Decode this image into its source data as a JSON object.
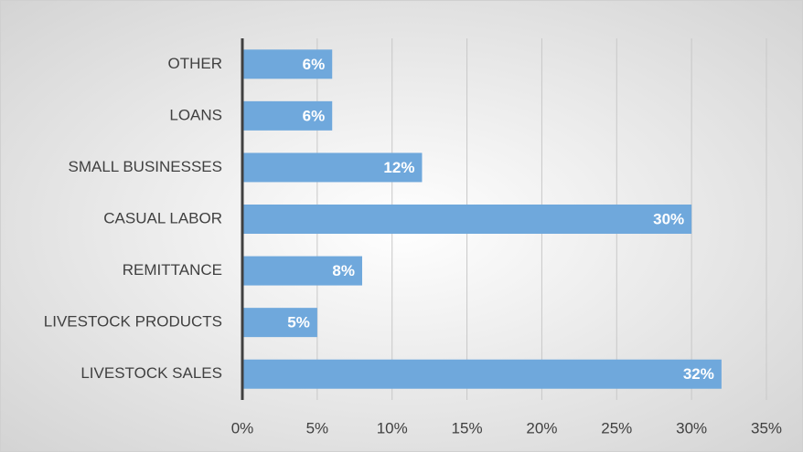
{
  "chart_data": {
    "type": "bar",
    "orientation": "horizontal",
    "categories": [
      "OTHER",
      "LOANS",
      "SMALL BUSINESSES",
      "CASUAL LABOR",
      "REMITTANCE",
      "LIVESTOCK PRODUCTS",
      "LIVESTOCK SALES"
    ],
    "values": [
      6,
      6,
      12,
      30,
      8,
      5,
      32
    ],
    "value_labels": [
      "6%",
      "6%",
      "12%",
      "30%",
      "8%",
      "5%",
      "32%"
    ],
    "color": "#6fa8dc",
    "xlim": [
      0,
      35
    ],
    "xticks": [
      {
        "value": 0,
        "label": "0%"
      },
      {
        "value": 5,
        "label": "5%"
      },
      {
        "value": 10,
        "label": "10%"
      },
      {
        "value": 15,
        "label": "15%"
      },
      {
        "value": 20,
        "label": "20%"
      },
      {
        "value": 25,
        "label": "25%"
      },
      {
        "value": 30,
        "label": "30%"
      },
      {
        "value": 35,
        "label": "35%"
      }
    ],
    "grid": true
  }
}
